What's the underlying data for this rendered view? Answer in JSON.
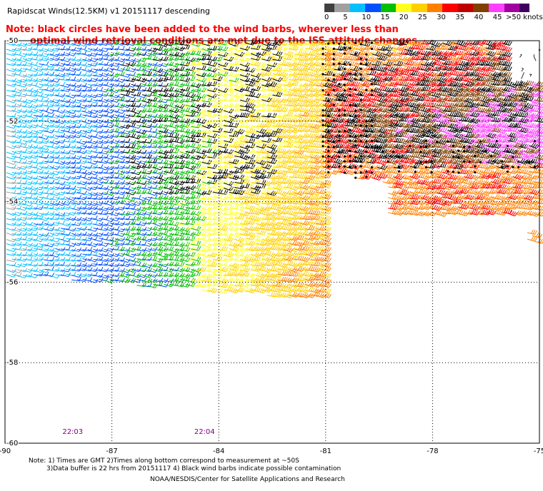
{
  "title": "Rapidscat Winds(12.5KM) v1 20151117 descending",
  "note_line1": "Note: black circles have been added to the wind barbs, wherever less than",
  "note_line2": "optimal wind retrieval conditions are met due to the ISS attitude changes.",
  "legend": {
    "unit": "knots",
    "labels": [
      "0",
      "5",
      "10",
      "15",
      "20",
      "25",
      "30",
      "35",
      "40",
      "45",
      ">50 knots"
    ],
    "colors": [
      "#404040",
      "#a0a0a0",
      "#00c0ff",
      "#0050ff",
      "#00c000",
      "#ffff20",
      "#ffd000",
      "#ff8000",
      "#ff0000",
      "#c00000",
      "#804000",
      "#ff40ff",
      "#a000a0",
      "#400060"
    ]
  },
  "axes": {
    "lon_ticks": [
      -90,
      -87,
      -84,
      -81,
      -78,
      -75
    ],
    "lat_ticks": [
      -50,
      -52,
      -54,
      -56,
      -58,
      -60
    ],
    "lon_labels": [
      "-90",
      "-87",
      "-84",
      "-81",
      "-78",
      "-75"
    ],
    "lat_labels": [
      "-50",
      "-52",
      "-54",
      "-56",
      "-58",
      "-60"
    ]
  },
  "times": [
    {
      "text": "22:03",
      "lon": -88.1
    },
    {
      "text": "22:04",
      "lon": -84.4
    }
  ],
  "footer": {
    "line1": "Note: 1) Times are GMT 2)Times along bottom correspond to measurement at ~50S",
    "line2": "3)Data buffer is 22 hrs from 20151117 4) Black wind barbs indicate possible contamination",
    "line3": "NOAA/NESDIS/Center for Satellite Applications and Research"
  },
  "colors": {
    "note": "#ff0000",
    "time_label": "#800080",
    "grid": "#000000",
    "flag_circle": "#000000"
  },
  "wind_field": {
    "swath1": {
      "lon_west": -90,
      "lon_east": -81,
      "lat_north": -50,
      "lat_south_west": -56.4,
      "lat_south_east": -56.8,
      "direction": "westerly"
    },
    "swath2": {
      "lon_west": -81,
      "lon_east": -75,
      "lat_north": -50,
      "lat_south": -54.6,
      "direction": "westerly"
    }
  }
}
